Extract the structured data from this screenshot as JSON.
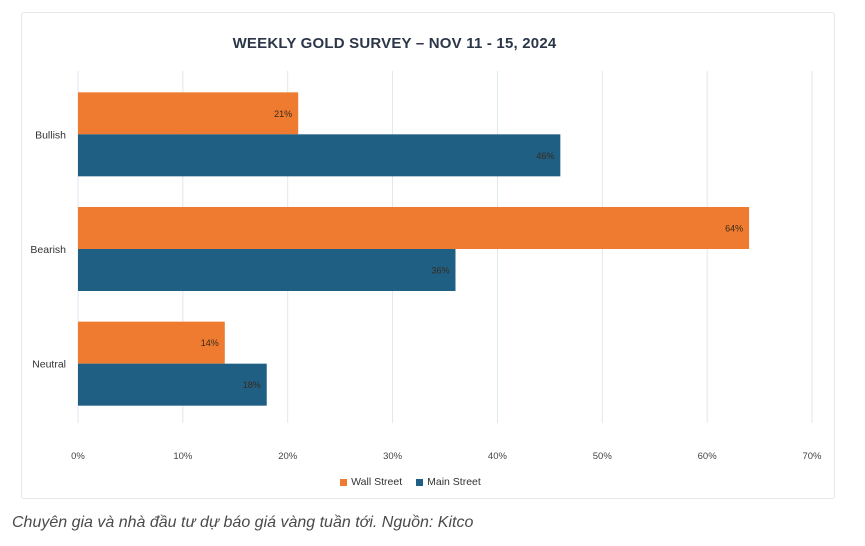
{
  "chart_data": {
    "type": "bar",
    "orientation": "horizontal",
    "title": "WEEKLY GOLD SURVEY – NOV 11 - 15, 2024",
    "categories": [
      "Bullish",
      "Bearish",
      "Neutral"
    ],
    "series": [
      {
        "name": "Wall Street",
        "color": "#ee7b30",
        "values": [
          21,
          64,
          14
        ],
        "labels": [
          "21%",
          "64%",
          "14%"
        ]
      },
      {
        "name": "Main Street",
        "color": "#1f5f84",
        "values": [
          46,
          36,
          18
        ],
        "labels": [
          "46%",
          "36%",
          "18%"
        ]
      }
    ],
    "xlim": [
      0,
      70
    ],
    "xticks": [
      0,
      10,
      20,
      30,
      40,
      50,
      60,
      70
    ],
    "xtick_labels": [
      "0%",
      "10%",
      "20%",
      "30%",
      "40%",
      "50%",
      "60%",
      "70%"
    ],
    "grid": "vertical",
    "legend_position": "bottom"
  },
  "caption": "Chuyên gia và nhà đầu tư dự báo giá vàng tuần tới. Nguồn: Kitco"
}
